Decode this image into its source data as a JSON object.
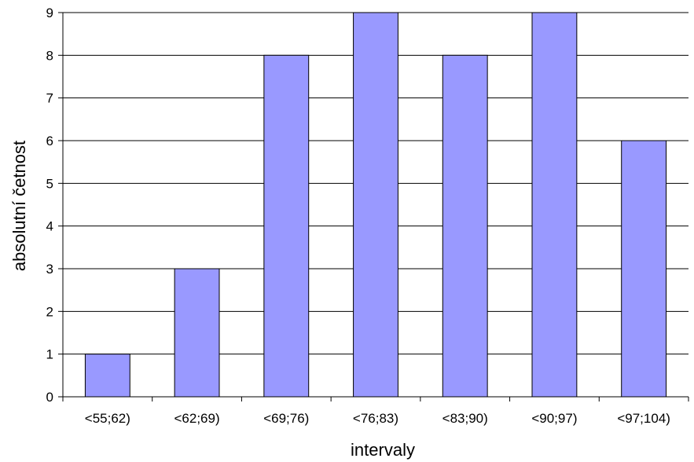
{
  "chart_data": {
    "type": "bar",
    "title": "",
    "xlabel": "intervaly",
    "ylabel": "absolutní četnost",
    "categories": [
      "<55;62)",
      "<62;69)",
      "<69;76)",
      "<76;83)",
      "<83;90)",
      "<90;97)",
      "<97;104)"
    ],
    "values": [
      1,
      3,
      8,
      9,
      8,
      9,
      6
    ],
    "ylim": [
      0,
      9
    ],
    "yticks": [
      0,
      1,
      2,
      3,
      4,
      5,
      6,
      7,
      8,
      9
    ],
    "grid": "horizontal",
    "legend": "none",
    "colors": {
      "bar_fill": "#9999ff",
      "bar_stroke": "#000000",
      "grid": "#000000"
    }
  }
}
